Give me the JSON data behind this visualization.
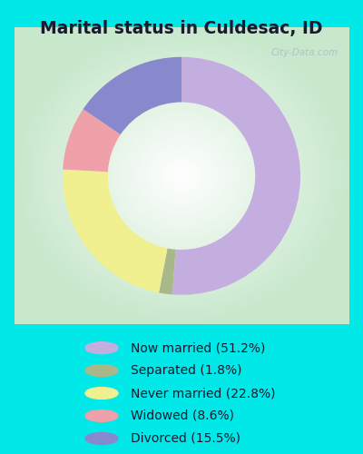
{
  "title": "Marital status in Culdesac, ID",
  "title_fontsize": 13.5,
  "segments": [
    {
      "label": "Now married (51.2%)",
      "value": 51.2,
      "color": "#c4aee0"
    },
    {
      "label": "Separated (1.8%)",
      "value": 1.8,
      "color": "#a8b888"
    },
    {
      "label": "Never married (22.8%)",
      "value": 22.8,
      "color": "#f0f090"
    },
    {
      "label": "Widowed (8.6%)",
      "value": 8.6,
      "color": "#f0a0a8"
    },
    {
      "label": "Divorced (15.5%)",
      "value": 15.5,
      "color": "#8888cc"
    }
  ],
  "background_color_outer": "#00e8e8",
  "chart_bg": "#ffffff",
  "watermark": "City-Data.com",
  "legend_fontsize": 10,
  "start_angle": 90,
  "donut_width": 0.38
}
